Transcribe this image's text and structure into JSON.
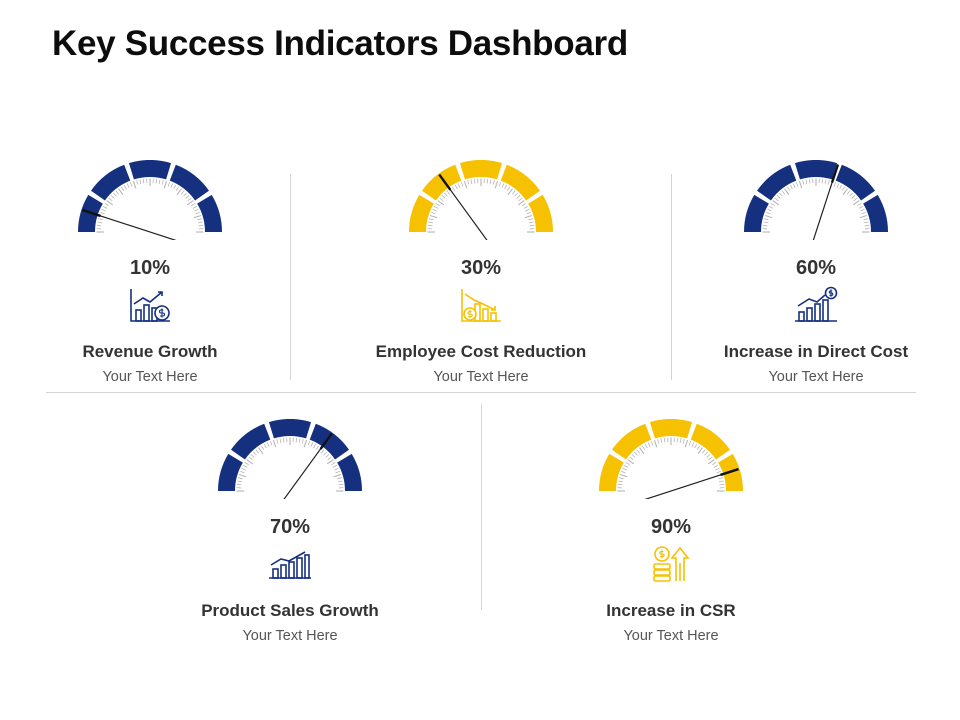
{
  "title": "Key Success Indicators Dashboard",
  "colors": {
    "navy": "#14307f",
    "gold": "#f6c100",
    "text": "#333333",
    "needle": "#111111"
  },
  "indicators": [
    {
      "value": 10,
      "value_label": "10%",
      "label": "Revenue Growth",
      "sub": "Your Text Here",
      "color": "#14307f",
      "icon": "revenue-chart-icon"
    },
    {
      "value": 30,
      "value_label": "30%",
      "label": "Employee Cost Reduction",
      "sub": "Your Text Here",
      "color": "#f6c100",
      "icon": "cost-reduction-icon"
    },
    {
      "value": 60,
      "value_label": "60%",
      "label": "Increase in Direct Cost",
      "sub": "Your Text Here",
      "color": "#14307f",
      "icon": "direct-cost-chart-icon"
    },
    {
      "value": 70,
      "value_label": "70%",
      "label": "Product Sales Growth",
      "sub": "Your Text Here",
      "color": "#14307f",
      "icon": "sales-growth-chart-icon"
    },
    {
      "value": 90,
      "value_label": "90%",
      "label": "Increase in CSR",
      "sub": "Your Text Here",
      "color": "#f6c100",
      "icon": "coins-arrow-up-icon"
    }
  ]
}
